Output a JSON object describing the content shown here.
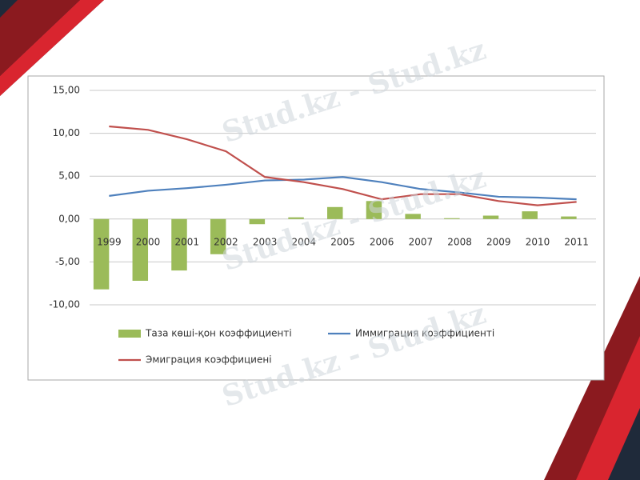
{
  "chart_data": {
    "type": "combo",
    "watermark": "Stud.kz - Stud.kz",
    "categories": [
      "1999",
      "2000",
      "2001",
      "2002",
      "2003",
      "2004",
      "2005",
      "2006",
      "2007",
      "2008",
      "2009",
      "2010",
      "2011"
    ],
    "series": [
      {
        "name": "Таза көші-қон коэффициенті",
        "type": "bar",
        "color": "#9bbb59",
        "values": [
          -8.2,
          -7.2,
          -6.0,
          -4.1,
          -0.6,
          0.2,
          1.4,
          2.1,
          0.6,
          0.1,
          0.4,
          0.9,
          0.3
        ]
      },
      {
        "name": "Иммиграция коэффициенті",
        "type": "line",
        "color": "#4f81bd",
        "values": [
          2.7,
          3.3,
          3.6,
          4.0,
          4.5,
          4.6,
          4.9,
          4.3,
          3.5,
          3.1,
          2.6,
          2.5,
          2.3
        ]
      },
      {
        "name": "Эмиграция коэффициені",
        "type": "line",
        "color": "#c0504d",
        "values": [
          10.8,
          10.4,
          9.3,
          7.9,
          4.9,
          4.3,
          3.5,
          2.3,
          2.9,
          2.9,
          2.1,
          1.6,
          2.0
        ]
      }
    ],
    "ylim": [
      -10,
      15
    ],
    "yticks": [
      {
        "value": -10,
        "label": "-10,00"
      },
      {
        "value": -5,
        "label": "-5,00"
      },
      {
        "value": 0,
        "label": "0,00"
      },
      {
        "value": 5,
        "label": "5,00"
      },
      {
        "value": 10,
        "label": "10,00"
      },
      {
        "value": 15,
        "label": "15,00"
      }
    ],
    "grid": true
  }
}
